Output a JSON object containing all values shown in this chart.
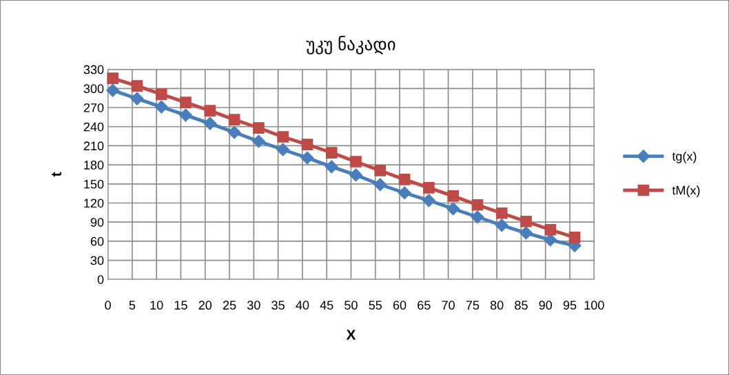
{
  "chart_data": {
    "type": "line",
    "title": "უკუ ნაკადი",
    "xlabel": "X",
    "ylabel": "t",
    "x": [
      1,
      6,
      11,
      16,
      21,
      26,
      31,
      36,
      41,
      46,
      51,
      56,
      61,
      66,
      71,
      76,
      81,
      86,
      91,
      96
    ],
    "series": [
      {
        "name": "tg(x)",
        "color": "#4a7ebb",
        "marker": "diamond",
        "values": [
          297,
          284,
          271,
          258,
          245,
          231,
          217,
          204,
          191,
          177,
          164,
          149,
          136,
          124,
          111,
          98,
          85,
          73,
          62,
          53
        ]
      },
      {
        "name": "tM(x)",
        "color": "#be4b48",
        "marker": "square",
        "values": [
          316,
          304,
          291,
          278,
          265,
          251,
          238,
          224,
          212,
          199,
          185,
          171,
          157,
          144,
          131,
          117,
          104,
          91,
          78,
          66
        ]
      }
    ],
    "xlim": [
      0,
      100
    ],
    "xticks": [
      0,
      5,
      10,
      15,
      20,
      25,
      30,
      35,
      40,
      45,
      50,
      55,
      60,
      65,
      70,
      75,
      80,
      85,
      90,
      95,
      100
    ],
    "ylim": [
      0,
      330
    ],
    "yticks": [
      0,
      30,
      60,
      90,
      120,
      150,
      180,
      210,
      240,
      270,
      300,
      330
    ],
    "grid": true,
    "legend": "right",
    "line_style": "solid"
  }
}
